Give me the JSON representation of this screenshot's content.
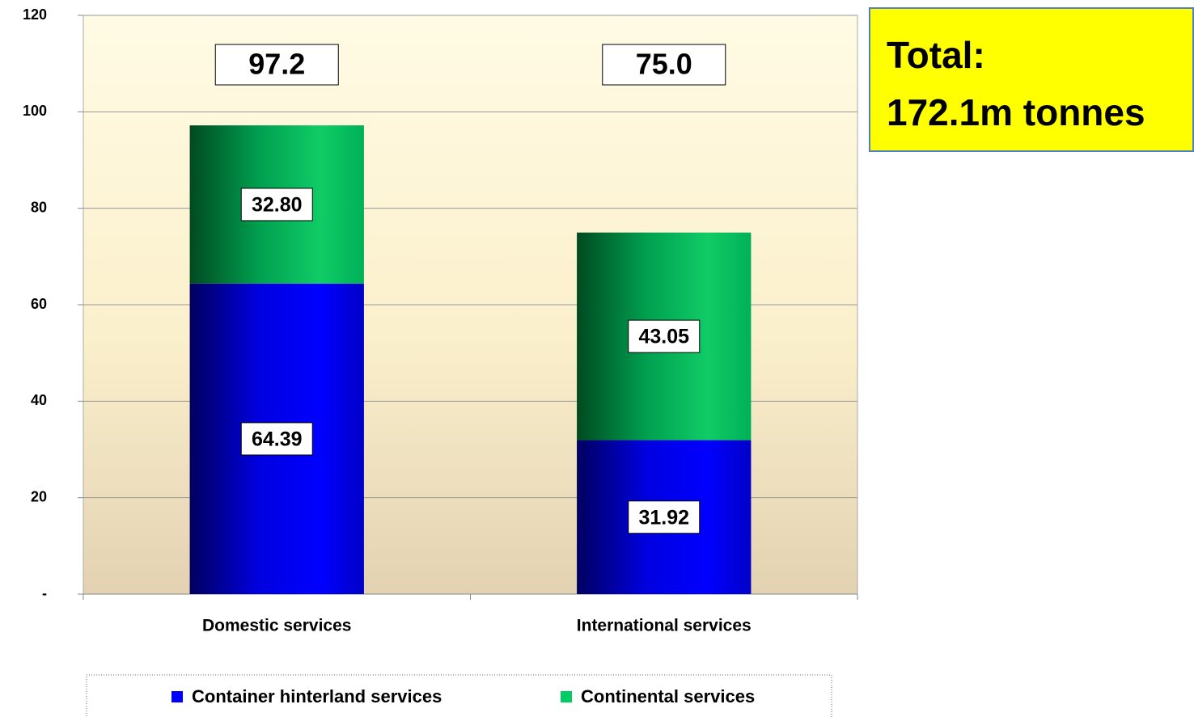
{
  "chart_data": {
    "type": "stacked_bar",
    "categories": [
      "Domestic services",
      "International services"
    ],
    "series": [
      {
        "name": "Container hinterland services",
        "color": "#0000ff",
        "values": [
          64.39,
          31.92
        ],
        "value_labels": [
          "64.39",
          "31.92"
        ]
      },
      {
        "name": "Continental services",
        "color": "#00cc66",
        "values": [
          32.8,
          43.05
        ],
        "value_labels": [
          "32.80",
          "43.05"
        ]
      }
    ],
    "total_labels": [
      "97.2",
      "75.0"
    ],
    "annotation": [
      "Total:",
      "172.1m tonnes"
    ],
    "ylim": [
      0,
      120
    ],
    "yticks": [
      {
        "value": 0,
        "label": "-"
      },
      20,
      40,
      60,
      80,
      100,
      120
    ],
    "grid": true,
    "legend": "bottom"
  }
}
